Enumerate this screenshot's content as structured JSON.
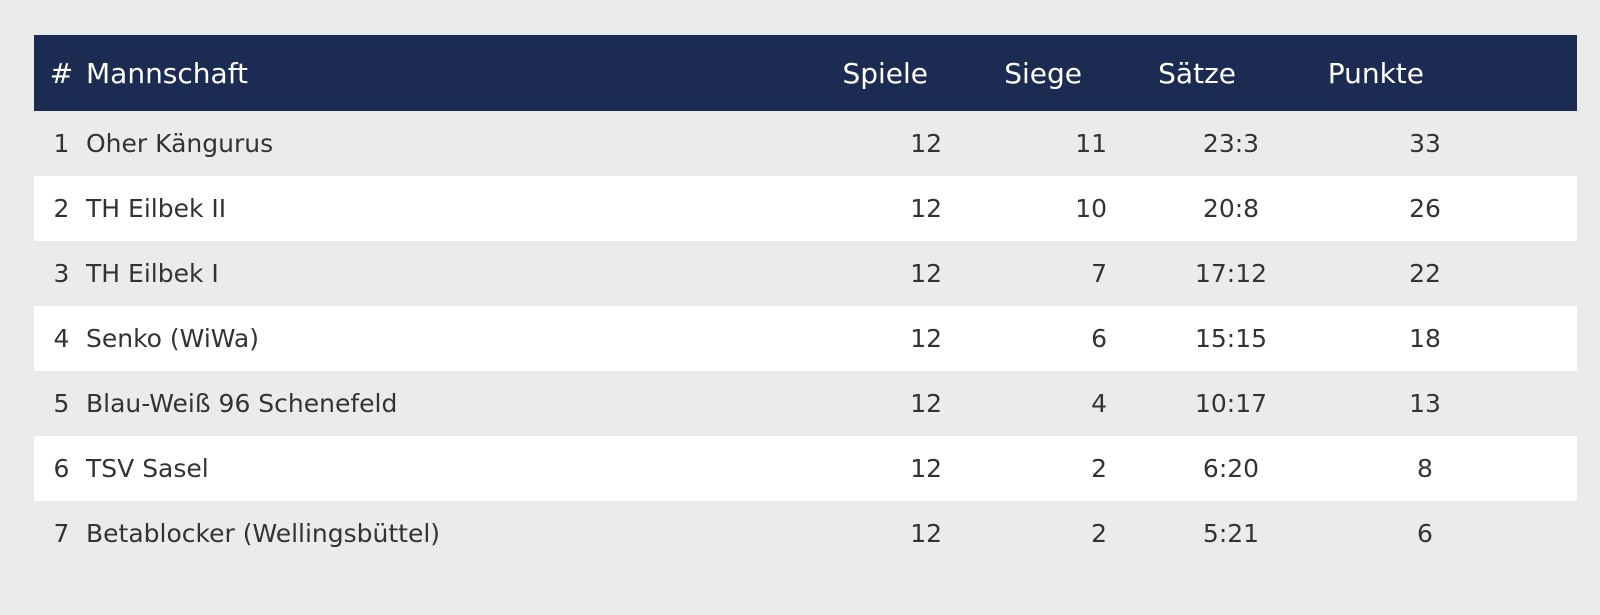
{
  "table": {
    "headers": {
      "rank": "#",
      "team": "Mannschaft",
      "games": "Spiele",
      "wins": "Siege",
      "sets": "Sätze",
      "points": "Punkte"
    },
    "rows": [
      {
        "rank": "1",
        "team": "Oher Kängurus",
        "games": "12",
        "wins": "11",
        "sets": "23:3",
        "points": "33"
      },
      {
        "rank": "2",
        "team": "TH Eilbek II",
        "games": "12",
        "wins": "10",
        "sets": "20:8",
        "points": "26"
      },
      {
        "rank": "3",
        "team": "TH Eilbek I",
        "games": "12",
        "wins": "7",
        "sets": "17:12",
        "points": "22"
      },
      {
        "rank": "4",
        "team": "Senko (WiWa)",
        "games": "12",
        "wins": "6",
        "sets": "15:15",
        "points": "18"
      },
      {
        "rank": "5",
        "team": "Blau-Weiß 96 Schenefeld",
        "games": "12",
        "wins": "4",
        "sets": "10:17",
        "points": "13"
      },
      {
        "rank": "6",
        "team": "TSV Sasel",
        "games": "12",
        "wins": "2",
        "sets": "6:20",
        "points": "8"
      },
      {
        "rank": "7",
        "team": "Betablocker (Wellingsbüttel)",
        "games": "12",
        "wins": "2",
        "sets": "5:21",
        "points": "6"
      }
    ]
  },
  "colors": {
    "header_background": "#1b2b52",
    "header_text": "#ffffff",
    "row_odd": "#ebebeb",
    "row_even": "#ffffff",
    "body_text": "#333333"
  }
}
